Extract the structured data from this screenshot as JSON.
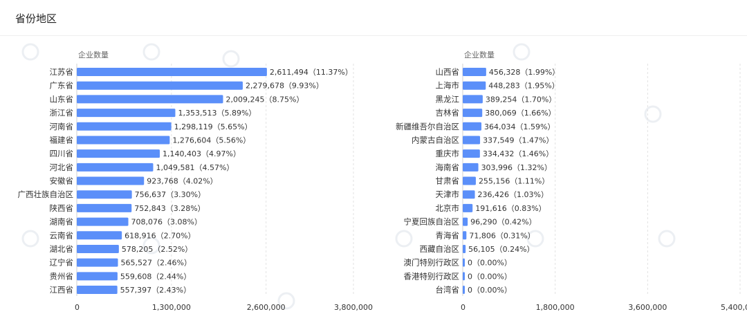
{
  "header": {
    "title": "省份地区"
  },
  "chart_data": [
    {
      "type": "bar",
      "orientation": "horizontal",
      "ylabel": "企业数量",
      "xlim": [
        0,
        3800000
      ],
      "xticks": [
        "0",
        "1,300,000",
        "2,600,000",
        "3,800,000"
      ],
      "xtick_values": [
        0,
        1300000,
        2600000,
        3800000
      ],
      "grid": true,
      "bar_color": "#5b8ff9",
      "categories": [
        "江苏省",
        "广东省",
        "山东省",
        "浙江省",
        "河南省",
        "福建省",
        "四川省",
        "河北省",
        "安徽省",
        "广西壮族自治区",
        "陕西省",
        "湖南省",
        "云南省",
        "湖北省",
        "辽宁省",
        "贵州省",
        "江西省"
      ],
      "values": [
        2611494,
        2279678,
        2009245,
        1353513,
        1298119,
        1276604,
        1140403,
        1049581,
        923768,
        756637,
        752843,
        708076,
        618916,
        578205,
        565527,
        559608,
        557397
      ],
      "labels": [
        "2,611,494（11.37%）",
        "2,279,678（9.93%）",
        "2,009,245（8.75%）",
        "1,353,513（5.89%）",
        "1,298,119（5.65%）",
        "1,276,604（5.56%）",
        "1,140,403（4.97%）",
        "1,049,581（4.57%）",
        "923,768（4.02%）",
        "756,637（3.30%）",
        "752,843（3.28%）",
        "708,076（3.08%）",
        "618,916（2.70%）",
        "578,205（2.52%）",
        "565,527（2.46%）",
        "559,608（2.44%）",
        "557,397（2.43%）"
      ]
    },
    {
      "type": "bar",
      "orientation": "horizontal",
      "ylabel": "企业数量",
      "xlim": [
        0,
        5400000
      ],
      "xticks": [
        "0",
        "1,800,000",
        "3,600,000",
        "5,400,000"
      ],
      "xtick_values": [
        0,
        1800000,
        3600000,
        5400000
      ],
      "grid": true,
      "bar_color": "#5b8ff9",
      "categories": [
        "山西省",
        "上海市",
        "黑龙江",
        "吉林省",
        "新疆维吾尔自治区",
        "内蒙古自治区",
        "重庆市",
        "海南省",
        "甘肃省",
        "天津市",
        "北京市",
        "宁夏回族自治区",
        "青海省",
        "西藏自治区",
        "澳门特别行政区",
        "香港特别行政区",
        "台湾省"
      ],
      "values": [
        456328,
        448283,
        389254,
        380069,
        364034,
        337549,
        334432,
        303996,
        255156,
        236426,
        191616,
        96290,
        71806,
        56105,
        0,
        0,
        0
      ],
      "labels": [
        "456,328（1.99%）",
        "448,283（1.95%）",
        "389,254（1.70%）",
        "380,069（1.66%）",
        "364,034（1.59%）",
        "337,549（1.47%）",
        "334,432（1.46%）",
        "303,996（1.32%）",
        "255,156（1.11%）",
        "236,426（1.03%）",
        "191,616（0.83%）",
        "96,290（0.42%）",
        "71,806（0.31%）",
        "56,105（0.24%）",
        "0（0.00%）",
        "0（0.00%）",
        "0（0.00%）"
      ]
    }
  ]
}
